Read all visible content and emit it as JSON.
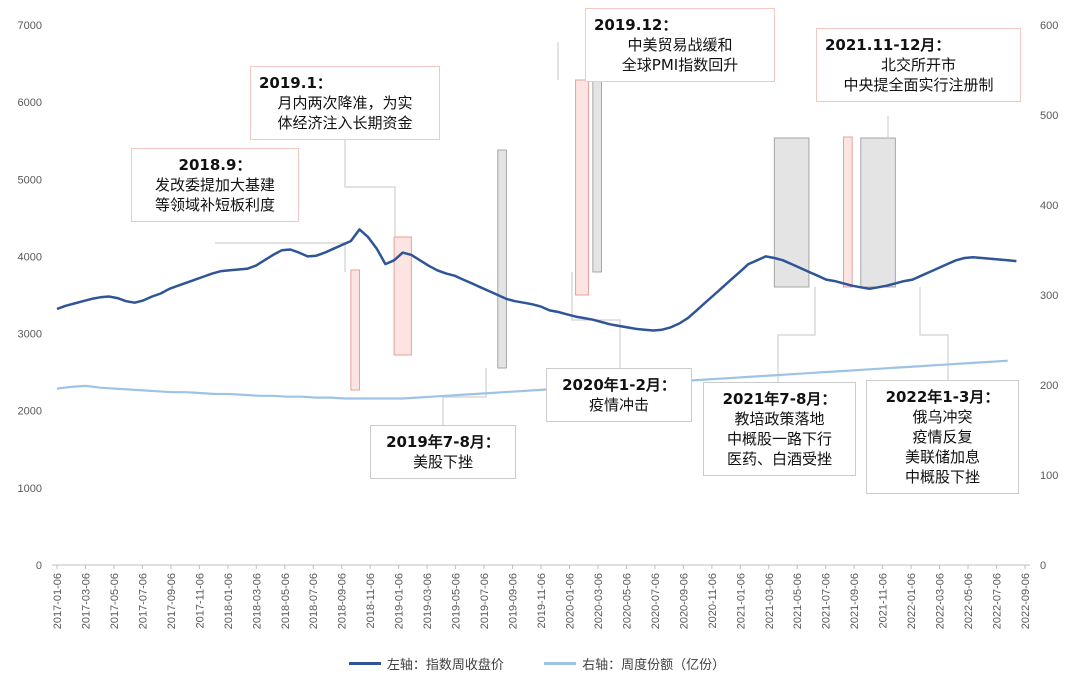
{
  "chart_data": {
    "type": "line",
    "title": "",
    "xlabel": "",
    "ylabel": "",
    "y_left_lim": [
      0,
      7000
    ],
    "y_right_lim": [
      0,
      600
    ],
    "y_left_ticks": [
      "0",
      "1000",
      "2000",
      "3000",
      "4000",
      "5000",
      "6000",
      "7000"
    ],
    "y_right_ticks": [
      "0",
      "100",
      "200",
      "300",
      "400",
      "500",
      "600"
    ],
    "x_ticks": [
      "2017-01-06",
      "2017-03-06",
      "2017-05-06",
      "2017-07-06",
      "2017-09-06",
      "2017-11-06",
      "2018-01-06",
      "2018-03-06",
      "2018-05-06",
      "2018-07-06",
      "2018-09-06",
      "2018-11-06",
      "2019-01-06",
      "2019-03-06",
      "2019-05-06",
      "2019-07-06",
      "2019-09-06",
      "2019-11-06",
      "2020-01-06",
      "2020-03-06",
      "2020-05-06",
      "2020-07-06",
      "2020-09-06",
      "2020-11-06",
      "2021-01-06",
      "2021-03-06",
      "2021-05-06",
      "2021-07-06",
      "2021-09-06",
      "2021-11-06",
      "2022-01-06",
      "2022-03-06",
      "2022-05-06",
      "2022-07-06",
      "2022-09-06"
    ],
    "grid": false,
    "legend_position": "bottom",
    "series": [
      {
        "name": "左轴：指数周收盘价",
        "axis": "left",
        "color": "#2f5597",
        "x": [
          0,
          0.6,
          1.2,
          1.8,
          2.4,
          3,
          3.6,
          4.2,
          4.8,
          5.4,
          6,
          6.6,
          7.2,
          7.8,
          8.4,
          9,
          9.6,
          10.2,
          10.8,
          11.4,
          12,
          12.6,
          13.2,
          13.8,
          14.4,
          15,
          15.6,
          16.2,
          16.8,
          17.4,
          18,
          18.6,
          19.2,
          19.8,
          20.4,
          21,
          21.6,
          22.2,
          22.8,
          23.4,
          24,
          24.6,
          25.2,
          25.8,
          26.4,
          27,
          27.6,
          28.2,
          28.8,
          29.4,
          30,
          30.6,
          31.2,
          31.8,
          32.4,
          33,
          33.6,
          34.2,
          34.8,
          35.4,
          36,
          36.6,
          37.2,
          37.8,
          38.4,
          39,
          39.6,
          40.2,
          40.8,
          41.4,
          42,
          42.6,
          43.2,
          43.8,
          44.4,
          45,
          45.6,
          46.2,
          46.8,
          47.4,
          48,
          48.6,
          49.2,
          49.8,
          50.4,
          51,
          51.6,
          52.2,
          52.8,
          53.4,
          54,
          54.6,
          55.2,
          55.8,
          56.4,
          57,
          57.6,
          58.2,
          58.8,
          59.4,
          60,
          60.6,
          61.2,
          61.8,
          62.4,
          63,
          63.6,
          64.2,
          64.8,
          65.4,
          66,
          66.6
        ],
        "values": [
          3320,
          3360,
          3390,
          3420,
          3450,
          3470,
          3480,
          3460,
          3420,
          3400,
          3430,
          3480,
          3520,
          3580,
          3620,
          3660,
          3700,
          3740,
          3780,
          3810,
          3820,
          3830,
          3840,
          3880,
          3950,
          4020,
          4080,
          4090,
          4050,
          4000,
          4010,
          4050,
          4100,
          4150,
          4200,
          4350,
          4250,
          4100,
          3900,
          3950,
          4050,
          4020,
          3950,
          3880,
          3820,
          3780,
          3750,
          3700,
          3650,
          3600,
          3550,
          3500,
          3450,
          3420,
          3400,
          3380,
          3350,
          3300,
          3280,
          3250,
          3220,
          3200,
          3180,
          3150,
          3120,
          3100,
          3080,
          3060,
          3050,
          3040,
          3050,
          3080,
          3130,
          3200,
          3300,
          3400,
          3500,
          3600,
          3700,
          3800,
          3900,
          3950,
          4000,
          3980,
          3950,
          3900,
          3850,
          3800,
          3750,
          3700,
          3680,
          3650,
          3620,
          3600,
          3580,
          3600,
          3620,
          3650,
          3680,
          3700,
          3750,
          3800,
          3850,
          3900,
          3950,
          3980,
          3990,
          3980,
          3970,
          3960,
          3950,
          3940
        ]
      },
      {
        "name": "右轴：周度份额（亿份）",
        "axis": "right",
        "color": "#9dc3e6",
        "x": [
          0,
          1,
          2,
          3,
          4,
          5,
          6,
          7,
          8,
          9,
          10,
          11,
          12,
          13,
          14,
          15,
          16,
          17,
          18,
          19,
          20,
          21,
          22,
          23,
          24,
          25,
          26,
          27,
          28,
          29,
          30,
          31,
          32,
          33,
          34,
          35,
          36,
          37,
          38,
          39,
          40,
          41,
          42,
          43,
          44,
          45,
          46,
          47,
          48,
          49,
          50,
          51,
          52,
          53,
          54,
          55,
          56,
          57,
          58,
          59,
          60,
          61,
          62,
          63,
          64,
          65,
          66
        ],
        "values": [
          196,
          198,
          199,
          197,
          196,
          195,
          194,
          193,
          192,
          192,
          191,
          190,
          190,
          189,
          188,
          188,
          187,
          187,
          186,
          186,
          185,
          185,
          185,
          185,
          185,
          186,
          187,
          188,
          189,
          190,
          191,
          192,
          193,
          194,
          195,
          196,
          197,
          198,
          199,
          200,
          201,
          202,
          203,
          204,
          205,
          206,
          207,
          208,
          209,
          210,
          211,
          212,
          213,
          214,
          215,
          216,
          217,
          218,
          219,
          220,
          221,
          222,
          223,
          224,
          225,
          226,
          227
        ]
      }
    ],
    "shaded_periods": [
      {
        "x0": 20.4,
        "x1": 21.0,
        "kind": "policy"
      },
      {
        "x0": 23.4,
        "x1": 24.6,
        "kind": "policy"
      },
      {
        "x0": 30.6,
        "x1": 31.2,
        "kind": "market"
      },
      {
        "x0": 36.0,
        "x1": 36.9,
        "kind": "policy"
      },
      {
        "x0": 37.2,
        "x1": 37.8,
        "kind": "market"
      },
      {
        "x0": 49.8,
        "x1": 52.2,
        "kind": "market"
      },
      {
        "x0": 54.6,
        "x1": 55.2,
        "kind": "policy"
      },
      {
        "x0": 55.8,
        "x1": 58.2,
        "kind": "market"
      }
    ]
  },
  "annotations": [
    {
      "id": "a2018-9",
      "title": "2018.9：",
      "lines": [
        "发改委提加大基建",
        "等领域补短板利度"
      ],
      "style": "pink"
    },
    {
      "id": "a2019-1",
      "title": "2019.1：",
      "lines": [
        "月内两次降准，为实",
        "体经济注入长期资金"
      ],
      "style": "pink"
    },
    {
      "id": "a2019-12",
      "title": "2019.12：",
      "lines": [
        "中美贸易战缓和",
        "全球PMI指数回升"
      ],
      "style": "pink"
    },
    {
      "id": "a2021-11",
      "title": "2021.11-12月：",
      "lines": [
        "北交所开市",
        "中央提全面实行注册制"
      ],
      "style": "pink"
    },
    {
      "id": "a2019-7",
      "title": "2019年7-8月：",
      "lines": [
        "美股下挫"
      ],
      "style": "gray"
    },
    {
      "id": "a2020-1",
      "title": "2020年1-2月：",
      "lines": [
        "疫情冲击"
      ],
      "style": "gray"
    },
    {
      "id": "a2021-7",
      "title": "2021年7-8月：",
      "lines": [
        "教培政策落地",
        "中概股一路下行",
        "医药、白酒受挫"
      ],
      "style": "gray"
    },
    {
      "id": "a2022-1",
      "title": "2022年1-3月：",
      "lines": [
        "俄乌冲突",
        "疫情反复",
        "美联储加息",
        "中概股下挫"
      ],
      "style": "gray"
    }
  ],
  "legend": [
    {
      "label": "左轴：指数周收盘价",
      "color": "#2f5597"
    },
    {
      "label": "右轴：周度份额（亿份）",
      "color": "#9dc3e6"
    }
  ]
}
